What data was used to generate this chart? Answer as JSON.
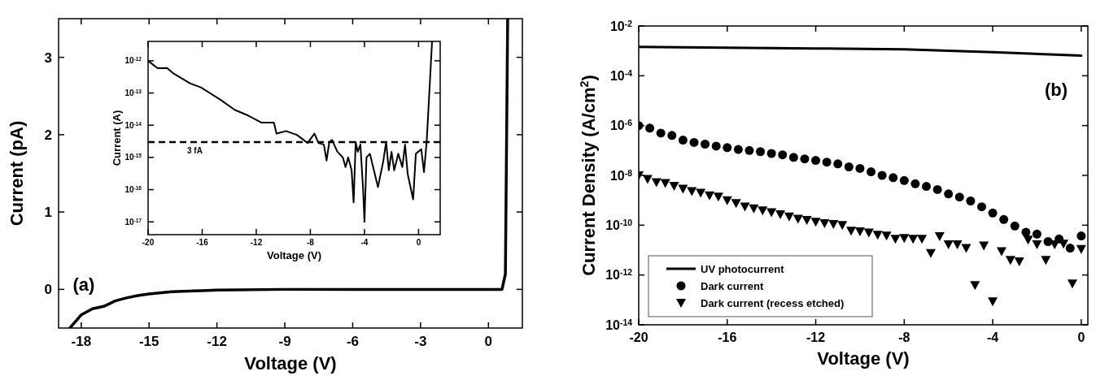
{
  "chart_data": [
    {
      "type": "line",
      "xlabel": "Voltage (V)",
      "ylabel": "Current (pA)",
      "xlim": [
        -19,
        1.5
      ],
      "ylim": [
        -0.5,
        3.5
      ],
      "xticks": [
        -18,
        -15,
        -12,
        -9,
        -6,
        -3,
        0
      ],
      "yticks": [
        0,
        1,
        2,
        3
      ],
      "grid": false,
      "annotations": [
        "(a)"
      ],
      "series": [
        {
          "color": "#000000",
          "x": [
            -18.5,
            -18,
            -17.5,
            -17,
            -16.5,
            -16,
            -15.5,
            -15,
            -14,
            -13,
            -12,
            -9,
            -6,
            -3,
            0,
            0.6,
            0.75,
            0.85
          ],
          "values": [
            -0.5,
            -0.33,
            -0.25,
            -0.22,
            -0.15,
            -0.11,
            -0.08,
            -0.06,
            -0.03,
            -0.02,
            -0.01,
            0,
            0,
            0,
            0,
            0,
            0.2,
            3.5
          ]
        }
      ]
    },
    {
      "type": "line",
      "xlabel": "Voltage (V)",
      "ylabel": "Current (A)",
      "log": "y",
      "xlim": [
        -20,
        1.6
      ],
      "ylim": [
        4e-18,
        4e-12
      ],
      "xticks": [
        -20,
        -16,
        -12,
        -8,
        -4,
        0
      ],
      "yticks": [
        {
          "value": 1e-12,
          "label": "10$^{-12}$"
        },
        {
          "value": 1e-13,
          "label": "10$^{-13}$"
        },
        {
          "value": 1e-14,
          "label": "10$^{-14}$"
        },
        {
          "value": 1e-15,
          "label": "10$^{-15}$"
        },
        {
          "value": 1e-16,
          "label": "10$^{-16}$"
        },
        {
          "value": 1e-17,
          "label": "10$^{-17}$"
        }
      ],
      "grid": false,
      "ref_lines": [
        {
          "axis": "y",
          "value": 3e-15,
          "label": "3 fA",
          "line_style": "dashed",
          "color": "#000000"
        }
      ],
      "series": [
        {
          "color": "#000000",
          "x": [
            -20,
            -19.3,
            -18.6,
            -18.1,
            -16.9,
            -16.1,
            -14.6,
            -13.6,
            -12.6,
            -11.6,
            -10.7,
            -10.5,
            -9.8,
            -9,
            -8.2,
            -7.7,
            -7.4,
            -7,
            -6.8,
            -6.6,
            -6.4,
            -6,
            -5.6,
            -5.4,
            -5.2,
            -4.95,
            -4.8,
            -4.65,
            -4.5,
            -4.3,
            -4.1,
            -4,
            -3.85,
            -3.6,
            -3.3,
            -3,
            -2.6,
            -2.4,
            -2.2,
            -2,
            -1.8,
            -1.5,
            -1.2,
            -1,
            -0.8,
            -0.4,
            -0.2,
            0.2,
            0.4,
            0.6,
            1
          ],
          "values": [
            1e-12,
            5.9e-13,
            6e-13,
            4e-13,
            2e-13,
            1.5e-13,
            6e-14,
            3e-14,
            2e-14,
            1.2e-14,
            1.2e-14,
            5.5e-15,
            6.6e-15,
            5e-15,
            2.8e-15,
            5.5e-15,
            2.8e-15,
            2.5e-15,
            8e-16,
            3e-15,
            3.5e-15,
            1.5e-15,
            1e-15,
            5e-16,
            1e-15,
            4e-16,
            4e-17,
            3e-15,
            1.5e-15,
            2.5e-15,
            1e-16,
            1e-17,
            1e-15,
            1.3e-15,
            4e-16,
            1.2e-16,
            8e-16,
            3e-15,
            4e-16,
            1.5e-15,
            4e-16,
            1.3e-15,
            5e-16,
            2.5e-15,
            3e-16,
            5e-17,
            1.3e-15,
            1.8e-15,
            3.5e-16,
            3e-15,
            4e-12
          ]
        }
      ]
    },
    {
      "type": "line",
      "xlabel": "Voltage (V)",
      "ylabel": "Current Density (A/cm$^{2}$)",
      "log": "y",
      "xlim": [
        -20,
        0.3
      ],
      "ylim": [
        1e-14,
        0.01
      ],
      "xticks": [
        -20,
        -16,
        -12,
        -8,
        -4,
        0
      ],
      "yticks": [
        {
          "value": 0.01,
          "label": "10$^{-2}$"
        },
        {
          "value": 0.0001,
          "label": "10$^{-4}$"
        },
        {
          "value": 1e-06,
          "label": "10$^{-6}$"
        },
        {
          "value": 1e-08,
          "label": "10$^{-8}$"
        },
        {
          "value": 1e-10,
          "label": "10$^{-10}$"
        },
        {
          "value": 1e-12,
          "label": "10$^{-12}$"
        },
        {
          "value": 1e-14,
          "label": "10$^{-14}$"
        }
      ],
      "grid": false,
      "legend": "bottom left",
      "annotations": [
        "(b)"
      ],
      "series": [
        {
          "name": "UV photocurrent",
          "color": "#000000",
          "x": [
            -20,
            -12,
            -8,
            -4,
            0
          ],
          "values": [
            0.00145,
            0.00125,
            0.00115,
            0.00089,
            0.00064
          ]
        },
        {
          "name": "Dark current",
          "type": "scatter",
          "marker": "circle",
          "color": "#000000",
          "x": [
            -20,
            -19.5,
            -19,
            -18.5,
            -18,
            -17.5,
            -17,
            -16.5,
            -16,
            -15.5,
            -15,
            -14.5,
            -14,
            -13.5,
            -13,
            -12.5,
            -12,
            -11.5,
            -11,
            -10.5,
            -10,
            -9.5,
            -9,
            -8.5,
            -8,
            -7.5,
            -7,
            -6.5,
            -6,
            -5.5,
            -5,
            -4.5,
            -4,
            -3.5,
            -3,
            -2.5,
            -2,
            -1.5,
            -1,
            -0.5,
            0
          ],
          "values": [
            1e-06,
            7.9e-07,
            5e-07,
            4e-07,
            2.6e-07,
            2.1e-07,
            1.8e-07,
            1.5e-07,
            1.3e-07,
            1.1e-07,
            1e-07,
            9e-08,
            7.6e-08,
            6.7e-08,
            5.3e-08,
            4.6e-08,
            4e-08,
            3.4e-08,
            2.9e-08,
            2.2e-08,
            1.9e-08,
            1.4e-08,
            1e-08,
            8.1e-09,
            6.2e-09,
            4.6e-09,
            3.6e-09,
            2.7e-09,
            1.8e-09,
            1.35e-09,
            9.4e-10,
            5.5e-10,
            3.1e-10,
            1.7e-10,
            9.3e-11,
            5.2e-11,
            4.4e-11,
            2.2e-11,
            2.8e-11,
            1.2e-11,
            3.7e-11
          ]
        },
        {
          "name": "Dark current (recess etched)",
          "type": "scatter",
          "marker": "triangle",
          "color": "#000000",
          "x": [
            -20,
            -19.6,
            -19.2,
            -18.8,
            -18.4,
            -18,
            -17.6,
            -17.2,
            -16.8,
            -16.4,
            -16,
            -15.6,
            -15.2,
            -14.8,
            -14.4,
            -14,
            -13.6,
            -13.2,
            -12.8,
            -12.4,
            -12,
            -11.6,
            -11.2,
            -10.8,
            -10.4,
            -10,
            -9.6,
            -9.2,
            -8.8,
            -8.4,
            -8,
            -7.6,
            -7.2,
            -6.8,
            -6.4,
            -6,
            -5.6,
            -5.2,
            -4.8,
            -4.4,
            -4,
            -3.6,
            -3.2,
            -2.8,
            -2.4,
            -2,
            -1.6,
            -1.2,
            -0.8,
            -0.4,
            0
          ],
          "values": [
            1e-08,
            7.2e-09,
            5.3e-09,
            4.9e-09,
            3.8e-09,
            2.9e-09,
            2.3e-09,
            2e-09,
            1.55e-09,
            1.4e-09,
            1e-09,
            7.6e-10,
            5.6e-10,
            4.7e-10,
            3.9e-10,
            3.3e-10,
            2.7e-10,
            2.2e-10,
            1.8e-10,
            1.6e-10,
            1.35e-10,
            1.2e-10,
            1.1e-10,
            1e-10,
            5.9e-11,
            5.6e-11,
            5e-11,
            4.1e-11,
            3.8e-11,
            2.8e-11,
            3e-11,
            2.8e-11,
            2.8e-11,
            7.6e-12,
            3.6e-11,
            1.7e-11,
            1.7e-11,
            1.2e-11,
            3.9e-13,
            1.5e-11,
            8.7e-14,
            9e-12,
            4e-12,
            3.5e-12,
            2.6e-11,
            1.7e-11,
            4e-12,
            1.7e-11,
            1.8e-11,
            4.5e-13,
            1.1e-11
          ]
        }
      ]
    }
  ]
}
